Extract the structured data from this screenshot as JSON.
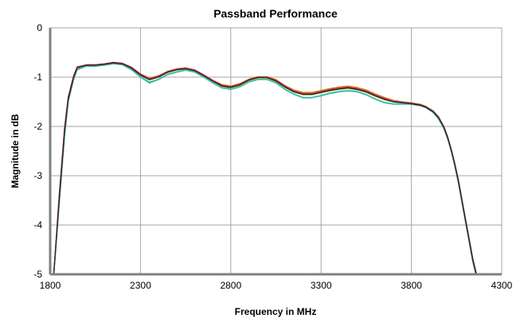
{
  "chart_data": {
    "type": "line",
    "title": "Passband Performance",
    "xlabel": "Frequency in MHz",
    "ylabel": "Magnitude in dB",
    "xlim": [
      1800,
      4300
    ],
    "ylim": [
      -5,
      0
    ],
    "xticks": [
      1800,
      2300,
      2800,
      3300,
      3800,
      4300
    ],
    "yticks": [
      0,
      -1,
      -2,
      -3,
      -4,
      -5
    ],
    "grid": true,
    "legend": "none",
    "x": [
      1820,
      1850,
      1880,
      1900,
      1930,
      1950,
      2000,
      2050,
      2100,
      2150,
      2200,
      2250,
      2300,
      2350,
      2400,
      2450,
      2500,
      2550,
      2600,
      2650,
      2700,
      2750,
      2800,
      2850,
      2900,
      2950,
      3000,
      3050,
      3100,
      3150,
      3200,
      3250,
      3300,
      3350,
      3400,
      3450,
      3500,
      3550,
      3600,
      3650,
      3700,
      3750,
      3800,
      3850,
      3880,
      3920,
      3950,
      3980,
      4000,
      4020,
      4040,
      4060,
      4080,
      4100,
      4120,
      4140,
      4160,
      4180
    ],
    "series": [
      {
        "color": "#2fb870",
        "values": [
          -5.0,
          -3.6,
          -2.2,
          -1.5,
          -1.05,
          -0.85,
          -0.78,
          -0.78,
          -0.76,
          -0.73,
          -0.75,
          -0.85,
          -1.0,
          -1.12,
          -1.05,
          -0.95,
          -0.9,
          -0.86,
          -0.9,
          -1.0,
          -1.12,
          -1.22,
          -1.25,
          -1.2,
          -1.1,
          -1.05,
          -1.05,
          -1.12,
          -1.25,
          -1.35,
          -1.42,
          -1.42,
          -1.38,
          -1.33,
          -1.3,
          -1.28,
          -1.3,
          -1.36,
          -1.45,
          -1.52,
          -1.55,
          -1.55,
          -1.55,
          -1.58,
          -1.62,
          -1.72,
          -1.85,
          -2.05,
          -2.25,
          -2.5,
          -2.8,
          -3.15,
          -3.55,
          -3.95,
          -4.35,
          -4.75,
          -5.05,
          -5.3
        ]
      },
      {
        "color": "#40bfbf",
        "values": [
          -5.0,
          -3.55,
          -2.15,
          -1.48,
          -1.03,
          -0.83,
          -0.77,
          -0.77,
          -0.75,
          -0.72,
          -0.74,
          -0.84,
          -0.99,
          -1.1,
          -1.04,
          -0.94,
          -0.89,
          -0.85,
          -0.89,
          -0.99,
          -1.11,
          -1.21,
          -1.24,
          -1.19,
          -1.09,
          -1.04,
          -1.04,
          -1.11,
          -1.24,
          -1.34,
          -1.41,
          -1.41,
          -1.37,
          -1.32,
          -1.29,
          -1.27,
          -1.29,
          -1.35,
          -1.44,
          -1.51,
          -1.54,
          -1.54,
          -1.54,
          -1.57,
          -1.61,
          -1.71,
          -1.84,
          -2.04,
          -2.24,
          -2.49,
          -2.78,
          -3.12,
          -3.52,
          -3.92,
          -4.32,
          -4.72,
          -5.02,
          -5.3
        ]
      },
      {
        "color": "#c8d42e",
        "values": [
          -5.0,
          -3.5,
          -2.1,
          -1.45,
          -1.0,
          -0.82,
          -0.76,
          -0.76,
          -0.74,
          -0.71,
          -0.73,
          -0.82,
          -0.96,
          -1.06,
          -1.0,
          -0.91,
          -0.86,
          -0.83,
          -0.87,
          -0.97,
          -1.09,
          -1.19,
          -1.22,
          -1.17,
          -1.07,
          -1.02,
          -1.02,
          -1.09,
          -1.21,
          -1.3,
          -1.36,
          -1.36,
          -1.32,
          -1.28,
          -1.25,
          -1.23,
          -1.26,
          -1.31,
          -1.39,
          -1.46,
          -1.5,
          -1.52,
          -1.53,
          -1.56,
          -1.6,
          -1.7,
          -1.82,
          -2.02,
          -2.22,
          -2.47,
          -2.76,
          -3.1,
          -3.5,
          -3.9,
          -4.3,
          -4.7,
          -5.0,
          -5.3
        ]
      },
      {
        "color": "#d98a2b",
        "values": [
          -5.0,
          -3.45,
          -2.05,
          -1.42,
          -0.98,
          -0.8,
          -0.75,
          -0.75,
          -0.73,
          -0.7,
          -0.72,
          -0.8,
          -0.93,
          -1.02,
          -0.97,
          -0.88,
          -0.83,
          -0.81,
          -0.85,
          -0.95,
          -1.06,
          -1.15,
          -1.18,
          -1.13,
          -1.04,
          -0.99,
          -0.99,
          -1.05,
          -1.17,
          -1.26,
          -1.31,
          -1.31,
          -1.27,
          -1.23,
          -1.2,
          -1.18,
          -1.21,
          -1.26,
          -1.34,
          -1.41,
          -1.47,
          -1.5,
          -1.52,
          -1.55,
          -1.59,
          -1.68,
          -1.8,
          -2.0,
          -2.2,
          -2.45,
          -2.74,
          -3.08,
          -3.48,
          -3.88,
          -4.28,
          -4.68,
          -4.98,
          -5.3
        ]
      },
      {
        "color": "#c0392b",
        "values": [
          -5.0,
          -3.4,
          -2.02,
          -1.4,
          -0.97,
          -0.79,
          -0.75,
          -0.75,
          -0.73,
          -0.7,
          -0.72,
          -0.8,
          -0.94,
          -1.03,
          -0.98,
          -0.89,
          -0.84,
          -0.82,
          -0.86,
          -0.96,
          -1.07,
          -1.16,
          -1.19,
          -1.14,
          -1.05,
          -1.0,
          -1.0,
          -1.06,
          -1.18,
          -1.28,
          -1.33,
          -1.33,
          -1.29,
          -1.25,
          -1.22,
          -1.2,
          -1.23,
          -1.28,
          -1.36,
          -1.43,
          -1.49,
          -1.51,
          -1.53,
          -1.56,
          -1.6,
          -1.69,
          -1.81,
          -2.01,
          -2.21,
          -2.46,
          -2.75,
          -3.09,
          -3.49,
          -3.89,
          -4.29,
          -4.69,
          -4.99,
          -5.3
        ]
      },
      {
        "color": "#2a1f4a",
        "values": [
          -5.0,
          -3.5,
          -2.1,
          -1.45,
          -1.0,
          -0.81,
          -0.76,
          -0.76,
          -0.74,
          -0.71,
          -0.73,
          -0.82,
          -0.96,
          -1.05,
          -1.0,
          -0.9,
          -0.85,
          -0.83,
          -0.87,
          -0.97,
          -1.08,
          -1.18,
          -1.21,
          -1.16,
          -1.06,
          -1.01,
          -1.01,
          -1.08,
          -1.2,
          -1.3,
          -1.35,
          -1.35,
          -1.31,
          -1.27,
          -1.24,
          -1.22,
          -1.25,
          -1.3,
          -1.38,
          -1.45,
          -1.5,
          -1.52,
          -1.54,
          -1.57,
          -1.61,
          -1.7,
          -1.82,
          -2.02,
          -2.22,
          -2.47,
          -2.77,
          -3.11,
          -3.51,
          -3.91,
          -4.31,
          -4.71,
          -5.01,
          -5.3
        ]
      }
    ]
  }
}
